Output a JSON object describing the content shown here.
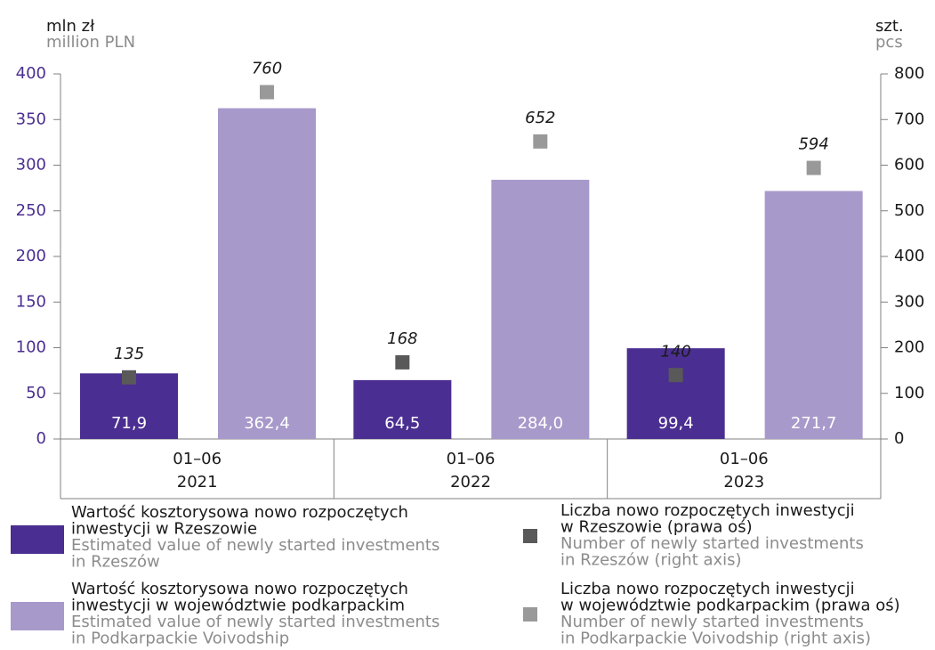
{
  "chart_data": {
    "type": "bar",
    "y_label": [
      "mln zł",
      "million PLN"
    ],
    "y2_label": [
      "szt.",
      "pcs"
    ],
    "categories": [
      [
        "01–06",
        "2021"
      ],
      [
        "01–06",
        "2022"
      ],
      [
        "01–06",
        "2023"
      ]
    ],
    "ylim": [
      0,
      400
    ],
    "yticks": [
      0,
      50,
      100,
      150,
      200,
      250,
      300,
      350,
      400
    ],
    "y2lim": [
      0,
      800
    ],
    "y2ticks": [
      0,
      100,
      200,
      300,
      400,
      500,
      600,
      700,
      800
    ],
    "series": [
      {
        "type": "bar",
        "color": "#4b2e91",
        "name": {
          "pl": [
            "Wartość kosztorysowa nowo rozpoczętych",
            "inwestycji w Rzeszowie"
          ],
          "en": [
            "Estimated value of newly started investments",
            "in Rzeszów"
          ]
        },
        "values": [
          71.9,
          64.5,
          99.4
        ],
        "value_labels": [
          "71,9",
          "64,5",
          "99,4"
        ]
      },
      {
        "type": "bar",
        "color": "#a899cb",
        "name": {
          "pl": [
            "Wartość kosztorysowa nowo rozpoczętych",
            "inwestycji w województwie podkarpackim"
          ],
          "en": [
            "Estimated value of newly started investments",
            "in Podkarpackie Voivodship"
          ]
        },
        "values": [
          362.4,
          284.0,
          271.7
        ],
        "value_labels": [
          "362,4",
          "284,0",
          "271,7"
        ]
      },
      {
        "type": "scatter",
        "axis": "y2",
        "color": "#595959",
        "name": {
          "pl": [
            "Liczba nowo rozpoczętych inwestycji",
            "w Rzeszowie (prawa oś)"
          ],
          "en": [
            "Number of newly started investments",
            "in Rzeszów (right axis)"
          ]
        },
        "values": [
          135,
          168,
          140
        ]
      },
      {
        "type": "scatter",
        "axis": "y2",
        "color": "#999999",
        "name": {
          "pl": [
            "Liczba nowo rozpoczętych inwestycji",
            "w województwie podkarpackim (prawa oś)"
          ],
          "en": [
            "Number of newly started investments",
            "in Podkarpackie Voivodship (right axis)"
          ]
        },
        "values": [
          760,
          652,
          594
        ]
      }
    ]
  }
}
